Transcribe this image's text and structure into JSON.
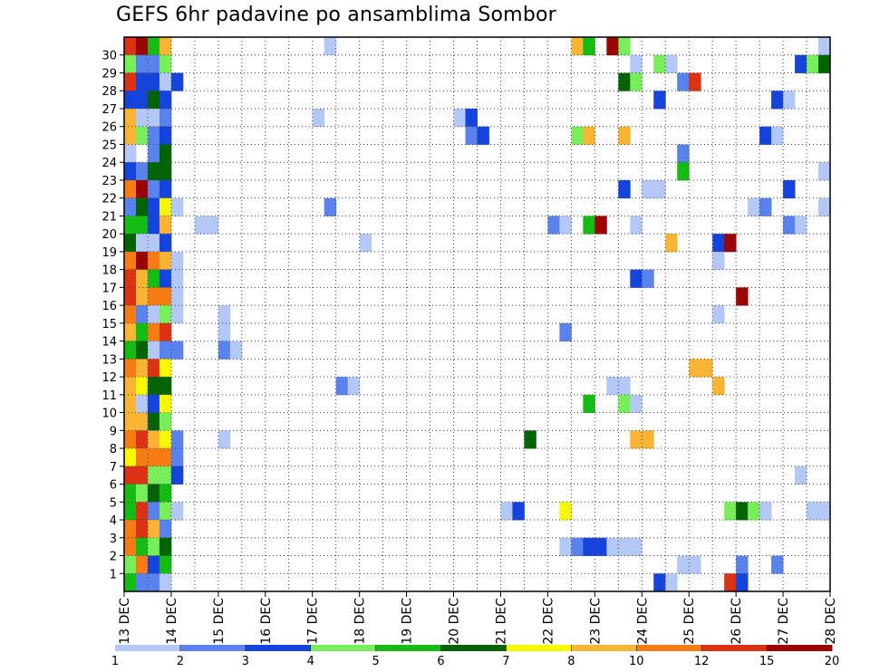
{
  "title": "GEFS 6hr padavine po ansamblima Sombor",
  "chart_data": {
    "type": "heatmap",
    "title": "GEFS 6hr padavine po ansamblima Sombor",
    "xlabel": "",
    "ylabel": "",
    "x_tick_labels": [
      "13 DEC",
      "14 DEC",
      "15 DEC",
      "16 DEC",
      "17 DEC",
      "18 DEC",
      "19 DEC",
      "20 DEC",
      "21 DEC",
      "22 DEC",
      "23 DEC",
      "24 DEC",
      "25 DEC",
      "26 DEC",
      "27 DEC",
      "28 DEC"
    ],
    "y_tick_labels": [
      "1",
      "2",
      "3",
      "4",
      "5",
      "6",
      "7",
      "8",
      "9",
      "10",
      "11",
      "12",
      "13",
      "14",
      "15",
      "16",
      "17",
      "18",
      "19",
      "20",
      "21",
      "22",
      "23",
      "24",
      "25",
      "26",
      "27",
      "28",
      "29",
      "30"
    ],
    "time_step_hours": 6,
    "members": 30,
    "grid": true,
    "legend_position": "bottom",
    "colorbar": {
      "labels": [
        "1",
        "2",
        "3",
        "4",
        "5",
        "6",
        "7",
        "8",
        "10",
        "12",
        "15",
        "20"
      ],
      "colors": [
        "#b4c8f8",
        "#5a82ec",
        "#1444dc",
        "#78ee5a",
        "#14bc14",
        "#046404",
        "#f8f800",
        "#f8b432",
        "#f87c14",
        "#dc3214",
        "#9a0606"
      ]
    },
    "cells": [
      [
        30,
        0,
        10
      ],
      [
        30,
        1,
        11
      ],
      [
        30,
        2,
        5
      ],
      [
        30,
        3,
        8
      ],
      [
        30,
        17,
        1
      ],
      [
        30,
        38,
        8
      ],
      [
        30,
        39,
        5
      ],
      [
        30,
        41,
        11
      ],
      [
        30,
        42,
        4
      ],
      [
        30,
        59,
        1
      ],
      [
        29,
        0,
        4
      ],
      [
        29,
        1,
        2
      ],
      [
        29,
        2,
        2
      ],
      [
        29,
        3,
        4
      ],
      [
        29,
        43,
        1
      ],
      [
        29,
        45,
        4
      ],
      [
        29,
        46,
        1
      ],
      [
        29,
        57,
        3
      ],
      [
        29,
        58,
        4
      ],
      [
        29,
        59,
        6
      ],
      [
        28,
        0,
        10
      ],
      [
        28,
        1,
        3
      ],
      [
        28,
        2,
        3
      ],
      [
        28,
        3,
        1
      ],
      [
        28,
        4,
        3
      ],
      [
        28,
        42,
        6
      ],
      [
        28,
        43,
        4
      ],
      [
        28,
        47,
        2
      ],
      [
        28,
        48,
        10
      ],
      [
        27,
        0,
        3
      ],
      [
        27,
        1,
        3
      ],
      [
        27,
        2,
        6
      ],
      [
        27,
        3,
        3
      ],
      [
        27,
        45,
        3
      ],
      [
        27,
        55,
        3
      ],
      [
        27,
        56,
        1
      ],
      [
        26,
        0,
        8
      ],
      [
        26,
        1,
        1
      ],
      [
        26,
        2,
        1
      ],
      [
        26,
        3,
        2
      ],
      [
        26,
        16,
        1
      ],
      [
        26,
        28,
        1
      ],
      [
        26,
        29,
        3
      ],
      [
        25,
        0,
        8
      ],
      [
        25,
        1,
        4
      ],
      [
        25,
        2,
        2
      ],
      [
        25,
        3,
        3
      ],
      [
        25,
        29,
        2
      ],
      [
        25,
        30,
        3
      ],
      [
        25,
        38,
        4
      ],
      [
        25,
        39,
        8
      ],
      [
        25,
        42,
        8
      ],
      [
        25,
        54,
        3
      ],
      [
        25,
        55,
        1
      ],
      [
        24,
        0,
        1
      ],
      [
        24,
        2,
        2
      ],
      [
        24,
        3,
        6
      ],
      [
        24,
        47,
        2
      ],
      [
        23,
        0,
        3
      ],
      [
        23,
        1,
        2
      ],
      [
        23,
        2,
        6
      ],
      [
        23,
        3,
        6
      ],
      [
        23,
        47,
        5
      ],
      [
        23,
        59,
        1
      ],
      [
        22,
        0,
        9
      ],
      [
        22,
        1,
        11
      ],
      [
        22,
        2,
        2
      ],
      [
        22,
        3,
        3
      ],
      [
        22,
        42,
        3
      ],
      [
        22,
        44,
        1
      ],
      [
        22,
        45,
        1
      ],
      [
        22,
        56,
        3
      ],
      [
        21,
        0,
        2
      ],
      [
        21,
        1,
        6
      ],
      [
        21,
        2,
        3
      ],
      [
        21,
        3,
        7
      ],
      [
        21,
        4,
        1
      ],
      [
        21,
        17,
        2
      ],
      [
        21,
        53,
        1
      ],
      [
        21,
        54,
        2
      ],
      [
        21,
        59,
        1
      ],
      [
        20,
        0,
        5
      ],
      [
        20,
        1,
        5
      ],
      [
        20,
        2,
        3
      ],
      [
        20,
        3,
        8
      ],
      [
        20,
        6,
        1
      ],
      [
        20,
        7,
        1
      ],
      [
        20,
        36,
        2
      ],
      [
        20,
        37,
        1
      ],
      [
        20,
        39,
        5
      ],
      [
        20,
        40,
        11
      ],
      [
        20,
        43,
        1
      ],
      [
        20,
        56,
        2
      ],
      [
        20,
        57,
        1
      ],
      [
        19,
        0,
        6
      ],
      [
        19,
        1,
        1
      ],
      [
        19,
        2,
        1
      ],
      [
        19,
        3,
        3
      ],
      [
        19,
        20,
        1
      ],
      [
        19,
        46,
        8
      ],
      [
        19,
        50,
        3
      ],
      [
        19,
        51,
        11
      ],
      [
        18,
        0,
        9
      ],
      [
        18,
        1,
        11
      ],
      [
        18,
        2,
        9
      ],
      [
        18,
        3,
        8
      ],
      [
        18,
        4,
        1
      ],
      [
        18,
        50,
        1
      ],
      [
        17,
        0,
        10
      ],
      [
        17,
        1,
        8
      ],
      [
        17,
        2,
        5
      ],
      [
        17,
        3,
        3
      ],
      [
        17,
        4,
        1
      ],
      [
        17,
        43,
        3
      ],
      [
        17,
        44,
        2
      ],
      [
        16,
        0,
        10
      ],
      [
        16,
        1,
        8
      ],
      [
        16,
        2,
        9
      ],
      [
        16,
        3,
        9
      ],
      [
        16,
        4,
        1
      ],
      [
        16,
        52,
        11
      ],
      [
        15,
        0,
        9
      ],
      [
        15,
        1,
        2
      ],
      [
        15,
        2,
        1
      ],
      [
        15,
        3,
        4
      ],
      [
        15,
        4,
        1
      ],
      [
        15,
        8,
        1
      ],
      [
        15,
        50,
        1
      ],
      [
        14,
        0,
        8
      ],
      [
        14,
        1,
        5
      ],
      [
        14,
        2,
        9
      ],
      [
        14,
        3,
        10
      ],
      [
        14,
        8,
        1
      ],
      [
        14,
        37,
        2
      ],
      [
        13,
        0,
        5
      ],
      [
        13,
        1,
        6
      ],
      [
        13,
        2,
        1
      ],
      [
        13,
        3,
        2
      ],
      [
        13,
        4,
        2
      ],
      [
        13,
        8,
        2
      ],
      [
        13,
        9,
        1
      ],
      [
        12,
        0,
        9
      ],
      [
        12,
        1,
        8
      ],
      [
        12,
        2,
        10
      ],
      [
        12,
        3,
        7
      ],
      [
        12,
        48,
        8
      ],
      [
        12,
        49,
        8
      ],
      [
        11,
        0,
        8
      ],
      [
        11,
        1,
        7
      ],
      [
        11,
        2,
        6
      ],
      [
        11,
        3,
        6
      ],
      [
        11,
        18,
        2
      ],
      [
        11,
        19,
        1
      ],
      [
        11,
        41,
        1
      ],
      [
        11,
        42,
        1
      ],
      [
        11,
        50,
        8
      ],
      [
        10,
        0,
        8
      ],
      [
        10,
        1,
        1
      ],
      [
        10,
        2,
        3
      ],
      [
        10,
        3,
        7
      ],
      [
        10,
        39,
        5
      ],
      [
        10,
        42,
        4
      ],
      [
        10,
        43,
        1
      ],
      [
        9,
        0,
        8
      ],
      [
        9,
        1,
        8
      ],
      [
        9,
        2,
        6
      ],
      [
        9,
        3,
        4
      ],
      [
        8,
        0,
        9
      ],
      [
        8,
        1,
        10
      ],
      [
        8,
        2,
        8
      ],
      [
        8,
        3,
        7
      ],
      [
        8,
        4,
        2
      ],
      [
        8,
        8,
        1
      ],
      [
        8,
        34,
        6
      ],
      [
        8,
        43,
        8
      ],
      [
        8,
        44,
        8
      ],
      [
        7,
        0,
        7
      ],
      [
        7,
        1,
        9
      ],
      [
        7,
        2,
        9
      ],
      [
        7,
        3,
        9
      ],
      [
        7,
        4,
        2
      ],
      [
        6,
        0,
        10
      ],
      [
        6,
        1,
        10
      ],
      [
        6,
        2,
        4
      ],
      [
        6,
        3,
        4
      ],
      [
        6,
        4,
        3
      ],
      [
        6,
        57,
        1
      ],
      [
        5,
        0,
        5
      ],
      [
        5,
        1,
        4
      ],
      [
        5,
        2,
        6
      ],
      [
        5,
        3,
        5
      ],
      [
        4,
        0,
        5
      ],
      [
        4,
        1,
        10
      ],
      [
        4,
        2,
        2
      ],
      [
        4,
        3,
        4
      ],
      [
        4,
        4,
        1
      ],
      [
        4,
        32,
        1
      ],
      [
        4,
        33,
        3
      ],
      [
        4,
        37,
        7
      ],
      [
        4,
        51,
        4
      ],
      [
        4,
        52,
        6
      ],
      [
        4,
        53,
        4
      ],
      [
        4,
        54,
        1
      ],
      [
        4,
        58,
        1
      ],
      [
        4,
        59,
        1
      ],
      [
        3,
        0,
        9
      ],
      [
        3,
        1,
        10
      ],
      [
        3,
        2,
        8
      ],
      [
        3,
        3,
        2
      ],
      [
        2,
        0,
        9
      ],
      [
        2,
        1,
        5
      ],
      [
        2,
        2,
        4
      ],
      [
        2,
        3,
        6
      ],
      [
        2,
        37,
        1
      ],
      [
        2,
        38,
        2
      ],
      [
        2,
        39,
        3
      ],
      [
        2,
        40,
        3
      ],
      [
        2,
        41,
        1
      ],
      [
        2,
        42,
        1
      ],
      [
        2,
        43,
        1
      ],
      [
        1,
        0,
        4
      ],
      [
        1,
        1,
        9
      ],
      [
        1,
        2,
        3
      ],
      [
        1,
        3,
        5
      ],
      [
        1,
        47,
        1
      ],
      [
        1,
        48,
        1
      ],
      [
        1,
        52,
        2
      ],
      [
        1,
        55,
        2
      ],
      [
        0,
        0,
        5
      ],
      [
        0,
        1,
        2
      ],
      [
        0,
        2,
        2
      ],
      [
        0,
        3,
        1
      ],
      [
        0,
        45,
        3
      ],
      [
        0,
        46,
        1
      ],
      [
        0,
        51,
        10
      ],
      [
        0,
        52,
        3
      ]
    ]
  }
}
